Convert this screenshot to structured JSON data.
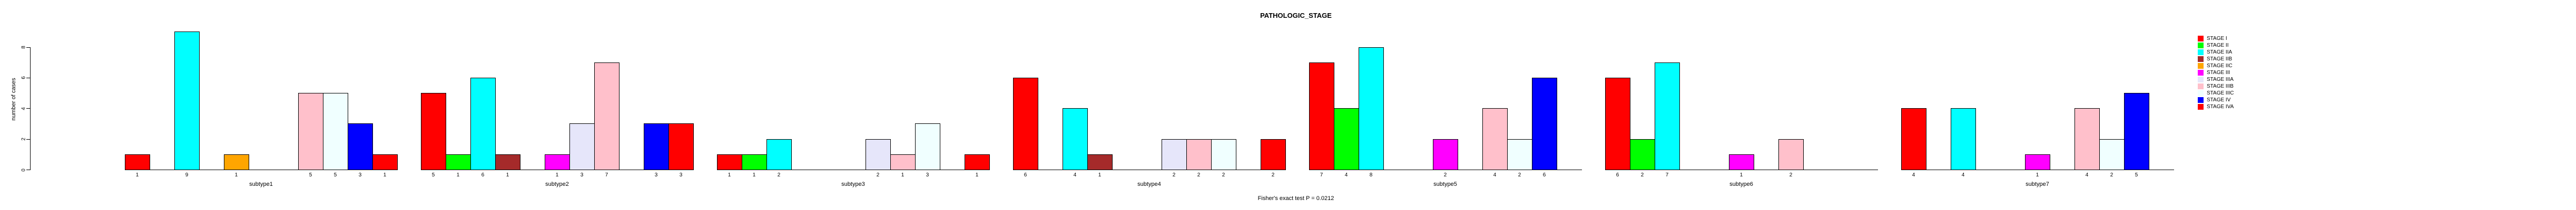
{
  "chart_title": "PATHOLOGIC_STAGE",
  "y_axis_label": "number of cases",
  "footnote": "Fisher's exact test P = 0.0212",
  "chart_data": {
    "type": "bar",
    "title": "PATHOLOGIC_STAGE",
    "xlabel": "",
    "ylabel": "number of cases",
    "ylim": [
      0,
      9
    ],
    "yticks": [
      0,
      2,
      4,
      6,
      8
    ],
    "grid": false,
    "legend_position": "right",
    "bar_value_labels": true,
    "categories": [
      "subtype1",
      "subtype2",
      "subtype3",
      "subtype4",
      "subtype5",
      "subtype6",
      "subtype7"
    ],
    "series": [
      {
        "name": "STAGE I",
        "color": "#FF0000",
        "values": [
          1,
          5,
          1,
          6,
          7,
          6,
          4
        ]
      },
      {
        "name": "STAGE II",
        "color": "#00FF00",
        "values": [
          0,
          1,
          1,
          0,
          4,
          2,
          0
        ]
      },
      {
        "name": "STAGE IIA",
        "color": "#00FFFF",
        "values": [
          9,
          6,
          2,
          4,
          8,
          7,
          4
        ]
      },
      {
        "name": "STAGE IIB",
        "color": "#A52A2A",
        "values": [
          0,
          1,
          0,
          1,
          0,
          0,
          0
        ]
      },
      {
        "name": "STAGE IIC",
        "color": "#FFA500",
        "values": [
          1,
          0,
          0,
          0,
          0,
          0,
          0
        ]
      },
      {
        "name": "STAGE III",
        "color": "#FF00FF",
        "values": [
          0,
          1,
          0,
          0,
          2,
          1,
          1
        ]
      },
      {
        "name": "STAGE IIIA",
        "color": "#E6E6FA",
        "values": [
          0,
          3,
          2,
          2,
          0,
          0,
          0
        ]
      },
      {
        "name": "STAGE IIIB",
        "color": "#FFC0CB",
        "values": [
          5,
          7,
          1,
          2,
          4,
          2,
          4
        ]
      },
      {
        "name": "STAGE IIIC",
        "color": "#F0FFFF",
        "values": [
          5,
          0,
          3,
          2,
          2,
          0,
          2
        ]
      },
      {
        "name": "STAGE IV",
        "color": "#0000FF",
        "values": [
          3,
          3,
          0,
          0,
          6,
          0,
          5
        ]
      },
      {
        "name": "STAGE IVA",
        "color": "#FF0000",
        "values": [
          1,
          3,
          1,
          2,
          0,
          0,
          0
        ]
      }
    ]
  }
}
